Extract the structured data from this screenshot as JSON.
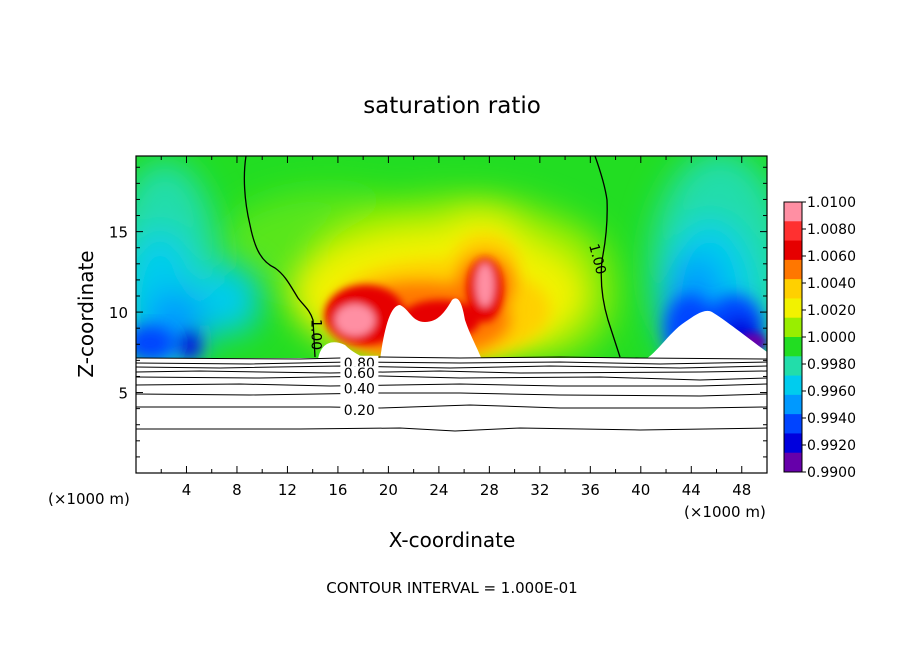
{
  "chart_data": {
    "type": "heatmap",
    "title": "saturation ratio",
    "xlabel": "X-coordinate",
    "ylabel": "Z-coordinate",
    "x_unit_left": "(×1000 m)",
    "x_unit_right": "(×1000 m)",
    "xlim": [
      0,
      50
    ],
    "ylim": [
      0,
      19.7
    ],
    "xticks": [
      4,
      8,
      12,
      16,
      20,
      24,
      28,
      32,
      36,
      40,
      44,
      48
    ],
    "yticks": [
      5,
      10,
      15
    ],
    "colorbar": {
      "levels": [
        "1.0100",
        "1.0080",
        "1.0060",
        "1.0040",
        "1.0020",
        "1.0000",
        "0.9980",
        "0.9960",
        "0.9940",
        "0.9920",
        "0.9900"
      ],
      "colors": [
        "#ff8fa3",
        "#ff3030",
        "#e60000",
        "#ff7700",
        "#ffd000",
        "#f2f200",
        "#99ee00",
        "#22dd22",
        "#22ddaa",
        "#00ccee",
        "#0099ff",
        "#0044ff",
        "#0000dd",
        "#6600aa"
      ]
    },
    "contour_labels": [
      {
        "text": "1.00",
        "x": 14.3,
        "z": 8.6,
        "rotate": 90
      },
      {
        "text": "1.00",
        "x": 36.6,
        "z": 13.3,
        "rotate": 75
      },
      {
        "text": "0.80",
        "x": 17.7,
        "z": 6.85,
        "rotate": 0
      },
      {
        "text": "0.60",
        "x": 17.7,
        "z": 6.2,
        "rotate": 0
      },
      {
        "text": "0.40",
        "x": 17.7,
        "z": 5.25,
        "rotate": 0
      },
      {
        "text": "0.20",
        "x": 17.7,
        "z": 3.9,
        "rotate": 0
      }
    ],
    "footer": "CONTOUR INTERVAL = 1.000E-01"
  }
}
